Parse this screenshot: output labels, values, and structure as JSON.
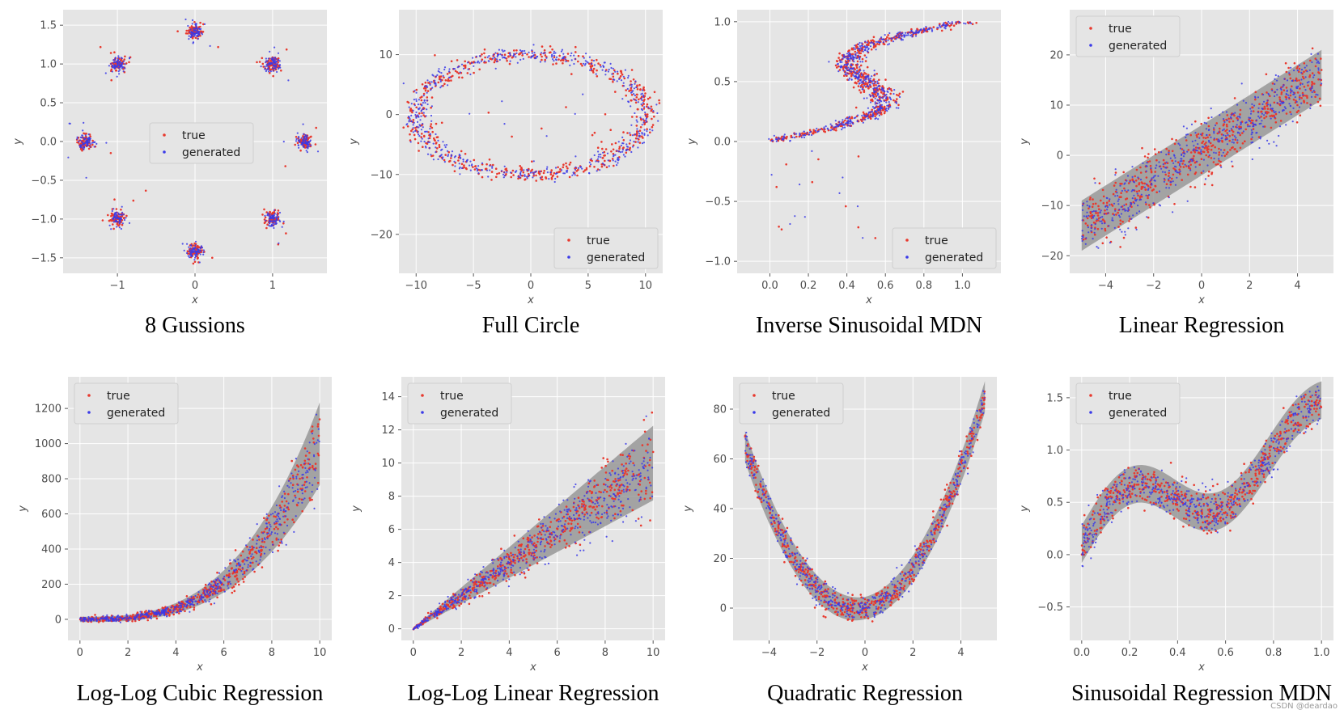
{
  "watermark": "CSDN @deardao",
  "legend": {
    "true_label": "true",
    "generated_label": "generated"
  },
  "colors": {
    "true": "#e8392e",
    "generated": "#3a3ae8",
    "band": "#8c8c8c",
    "panel_bg": "#e5e5e5",
    "grid": "#ffffff"
  },
  "chart_data": [
    {
      "id": "eight-gaussians",
      "type": "scatter",
      "title": "8 Gussions",
      "xlabel": "x",
      "ylabel": "y",
      "xlim": [
        -1.7,
        1.7
      ],
      "ylim": [
        -1.7,
        1.7
      ],
      "xticks": [
        -1,
        0,
        1
      ],
      "xtick_labels": [
        "−1",
        "0",
        "1"
      ],
      "yticks": [
        -1.5,
        -1.0,
        -0.5,
        0.0,
        0.5,
        1.0,
        1.5
      ],
      "ytick_labels": [
        "−1.5",
        "−1.0",
        "−0.5",
        "0.0",
        "0.5",
        "1.0",
        "1.5"
      ],
      "legend_position": "center",
      "band": false,
      "cluster_centers": [
        [
          1.414,
          0
        ],
        [
          1,
          1
        ],
        [
          0,
          1.414
        ],
        [
          -1,
          1
        ],
        [
          -1.414,
          0
        ],
        [
          -1,
          -1
        ],
        [
          0,
          -1.414
        ],
        [
          1,
          -1
        ]
      ],
      "cluster_spread": 0.05
    },
    {
      "id": "full-circle",
      "type": "scatter",
      "title": "Full Circle",
      "xlabel": "x",
      "ylabel": "y",
      "xlim": [
        -11.5,
        11.5
      ],
      "ylim": [
        -26.5,
        17.5
      ],
      "xticks": [
        -10,
        -5,
        0,
        5,
        10
      ],
      "xtick_labels": [
        "−10",
        "−5",
        "0",
        "5",
        "10"
      ],
      "yticks": [
        -20,
        -10,
        0,
        10
      ],
      "ytick_labels": [
        "−20",
        "−10",
        "0",
        "10"
      ],
      "legend_position": "lower-right",
      "band": false,
      "circle_radius": 10
    },
    {
      "id": "inverse-sinusoidal-mdn",
      "type": "scatter",
      "title": "Inverse Sinusoidal MDN",
      "xlabel": "x",
      "ylabel": "y",
      "xlim": [
        -0.17,
        1.2
      ],
      "ylim": [
        -1.1,
        1.1
      ],
      "xticks": [
        0.0,
        0.2,
        0.4,
        0.6,
        0.8,
        1.0
      ],
      "xtick_labels": [
        "0.0",
        "0.2",
        "0.4",
        "0.6",
        "0.8",
        "1.0"
      ],
      "yticks": [
        -1.0,
        -0.5,
        0.0,
        0.5,
        1.0
      ],
      "ytick_labels": [
        "−1.0",
        "−0.5",
        "0.0",
        "0.5",
        "1.0"
      ],
      "legend_position": "lower-right",
      "band": false
    },
    {
      "id": "linear-regression",
      "type": "scatter",
      "title": "Linear Regression",
      "xlabel": "x",
      "ylabel": "y",
      "xlim": [
        -5.5,
        5.5
      ],
      "ylim": [
        -23.5,
        29
      ],
      "xticks": [
        -4,
        -2,
        0,
        2,
        4
      ],
      "xtick_labels": [
        "−4",
        "−2",
        "0",
        "2",
        "4"
      ],
      "yticks": [
        -20,
        -10,
        0,
        10,
        20
      ],
      "ytick_labels": [
        "−20",
        "−10",
        "0",
        "10",
        "20"
      ],
      "legend_position": "upper-left",
      "band": true,
      "fn": "linear",
      "x_range": [
        -5,
        5
      ]
    },
    {
      "id": "log-log-cubic-regression",
      "type": "scatter",
      "title": "Log-Log Cubic Regression",
      "xlabel": "x",
      "ylabel": "y",
      "xlim": [
        -0.5,
        10.5
      ],
      "ylim": [
        -120,
        1380
      ],
      "xticks": [
        0,
        2,
        4,
        6,
        8,
        10
      ],
      "xtick_labels": [
        "0",
        "2",
        "4",
        "6",
        "8",
        "10"
      ],
      "yticks": [
        0,
        200,
        400,
        600,
        800,
        1000,
        1200
      ],
      "ytick_labels": [
        "0",
        "200",
        "400",
        "600",
        "800",
        "1000",
        "1200"
      ],
      "legend_position": "upper-left",
      "band": true,
      "fn": "cubic",
      "x_range": [
        0,
        10
      ]
    },
    {
      "id": "log-log-linear-regression",
      "type": "scatter",
      "title": "Log-Log Linear Regression",
      "xlabel": "x",
      "ylabel": "y",
      "xlim": [
        -0.5,
        10.5
      ],
      "ylim": [
        -0.7,
        15.2
      ],
      "xticks": [
        0,
        2,
        4,
        6,
        8,
        10
      ],
      "xtick_labels": [
        "0",
        "2",
        "4",
        "6",
        "8",
        "10"
      ],
      "yticks": [
        0,
        2,
        4,
        6,
        8,
        10,
        12,
        14
      ],
      "ytick_labels": [
        "0",
        "2",
        "4",
        "6",
        "8",
        "10",
        "12",
        "14"
      ],
      "legend_position": "upper-left",
      "band": true,
      "fn": "loglinear",
      "x_range": [
        0,
        10
      ]
    },
    {
      "id": "quadratic-regression",
      "type": "scatter",
      "title": "Quadratic Regression",
      "xlabel": "x",
      "ylabel": "y",
      "xlim": [
        -5.5,
        5.5
      ],
      "ylim": [
        -13,
        93
      ],
      "xticks": [
        -4,
        -2,
        0,
        2,
        4
      ],
      "xtick_labels": [
        "−4",
        "−2",
        "0",
        "2",
        "4"
      ],
      "yticks": [
        0,
        20,
        40,
        60,
        80
      ],
      "ytick_labels": [
        "0",
        "20",
        "40",
        "60",
        "80"
      ],
      "legend_position": "upper-left",
      "band": true,
      "fn": "quadratic",
      "x_range": [
        -5,
        5
      ]
    },
    {
      "id": "sinusoidal-regression-mdn",
      "type": "scatter",
      "title": "Sinusoidal Regression MDN",
      "xlabel": "x",
      "ylabel": "y",
      "xlim": [
        -0.05,
        1.05
      ],
      "ylim": [
        -0.82,
        1.7
      ],
      "xticks": [
        0.0,
        0.2,
        0.4,
        0.6,
        0.8,
        1.0
      ],
      "xtick_labels": [
        "0.0",
        "0.2",
        "0.4",
        "0.6",
        "0.8",
        "1.0"
      ],
      "yticks": [
        -0.5,
        0.0,
        0.5,
        1.0,
        1.5
      ],
      "ytick_labels": [
        "−0.5",
        "0.0",
        "0.5",
        "1.0",
        "1.5"
      ],
      "legend_position": "upper-left",
      "band": true,
      "fn": "sinusoidal",
      "x_range": [
        0,
        1
      ]
    }
  ]
}
